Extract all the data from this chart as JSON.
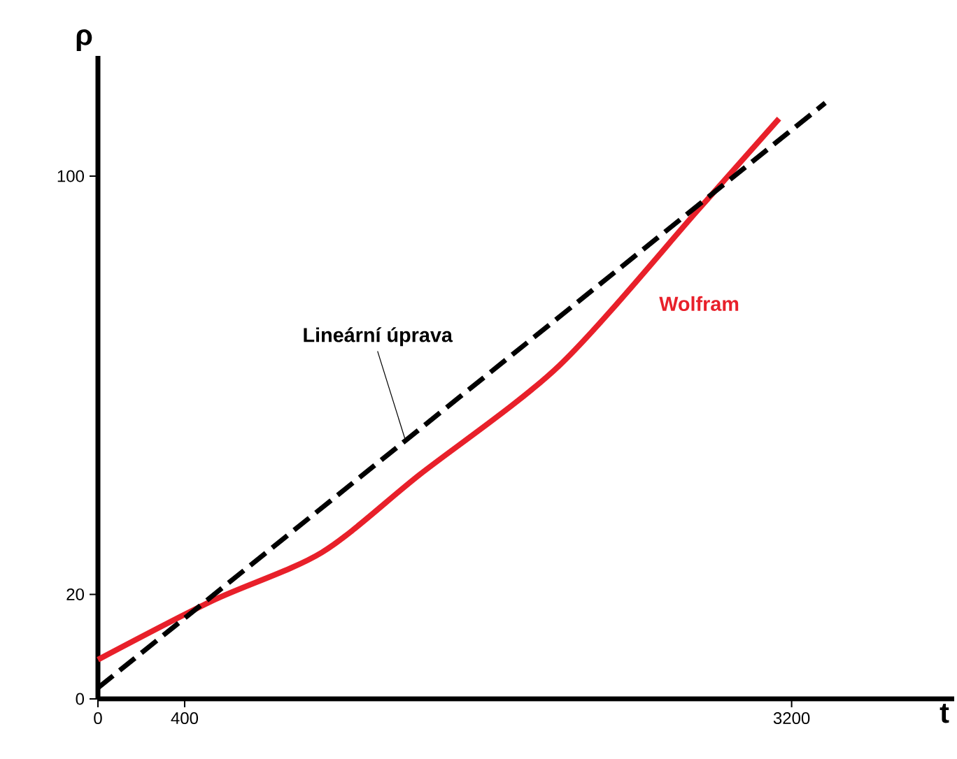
{
  "chart_data": {
    "type": "line",
    "xlabel": "t",
    "ylabel": "ρ",
    "xlim": [
      0,
      3950
    ],
    "ylim": [
      0,
      123
    ],
    "xticks": [
      0,
      400,
      3200
    ],
    "yticks": [
      0,
      20,
      100
    ],
    "grid": false,
    "legend": false,
    "series": [
      {
        "name": "Wolfram",
        "color": "#e8202a",
        "line_style": "solid",
        "x": [
          0,
          529,
          1032,
          1484,
          2129,
          2774,
          3142
        ],
        "values": [
          7.5,
          18.8,
          28,
          42.9,
          63.8,
          93.8,
          111
        ]
      },
      {
        "color": "#000000",
        "line_style": "dashed",
        "x": [
          0,
          3355
        ],
        "values": [
          2.1,
          114
        ]
      }
    ],
    "annotations": [
      {
        "text": "Lineární úprava",
        "x": 1419,
        "y": 49.4
      }
    ]
  }
}
